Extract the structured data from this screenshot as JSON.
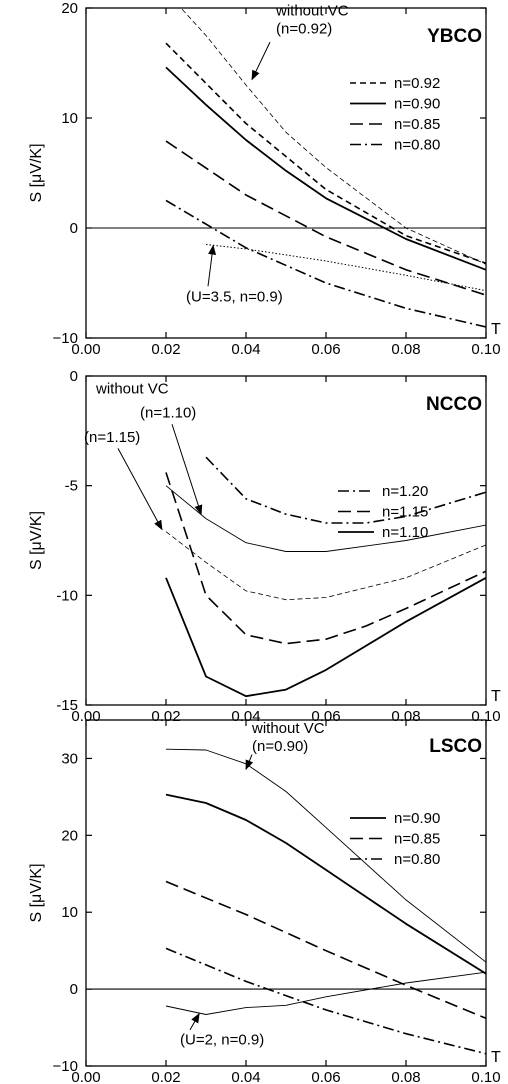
{
  "chart_data": [
    {
      "type": "line",
      "title": "YBCO",
      "xlabel": "T",
      "ylabel": "S [μV/K]",
      "xlim": [
        0.0,
        0.1
      ],
      "ylim": [
        -10,
        20
      ],
      "xticks": [
        "0.00",
        "0.02",
        "0.04",
        "0.06",
        "0.08",
        "0.10"
      ],
      "yticks": [
        "20",
        "10",
        "0",
        "−10"
      ],
      "zero_line": true,
      "legend_position": "right",
      "series": [
        {
          "name": "n=0.92",
          "style": "short-dash",
          "width": 1.6,
          "x": [
            0.02,
            0.04,
            0.06,
            0.08,
            0.1
          ],
          "y": [
            16.8,
            9.5,
            3.5,
            -0.7,
            -3.2
          ]
        },
        {
          "name": "n=0.90",
          "style": "solid",
          "width": 1.8,
          "x": [
            0.02,
            0.03,
            0.04,
            0.05,
            0.06,
            0.08,
            0.1
          ],
          "y": [
            14.6,
            11.2,
            8.0,
            5.2,
            2.7,
            -1.0,
            -3.8
          ]
        },
        {
          "name": "n=0.85",
          "style": "long-dash",
          "width": 1.6,
          "x": [
            0.02,
            0.04,
            0.06,
            0.08,
            0.1
          ],
          "y": [
            7.9,
            3.0,
            -0.8,
            -3.8,
            -6.1
          ]
        },
        {
          "name": "n=0.80",
          "style": "dash-dot",
          "width": 1.6,
          "x": [
            0.02,
            0.04,
            0.06,
            0.08,
            0.1
          ],
          "y": [
            2.5,
            -1.8,
            -5.0,
            -7.3,
            -9.0
          ]
        },
        {
          "name": "",
          "style": "thin-dash",
          "width": 0.8,
          "x": [
            0.02,
            0.03,
            0.04,
            0.05,
            0.06,
            0.08,
            0.1
          ],
          "y": [
            21.5,
            17.5,
            13.0,
            8.7,
            5.5,
            0.0,
            -3.3
          ]
        },
        {
          "name": "",
          "style": "dotted",
          "width": 1.0,
          "x": [
            0.03,
            0.04,
            0.06,
            0.08,
            0.1
          ],
          "y": [
            -1.5,
            -1.9,
            -3.0,
            -4.3,
            -5.7
          ]
        }
      ],
      "annotations": [
        {
          "lines": [
            "without VC",
            "(n=0.92)"
          ],
          "text_at": [
            0.0475,
            19.3
          ],
          "arrow_from": [
            0.046,
            16.9
          ],
          "arrow_to": [
            0.0415,
            13.5
          ]
        },
        {
          "lines": [
            "(U=3.5, n=0.9)"
          ],
          "text_at": [
            0.025,
            -6.7
          ],
          "arrow_from": [
            0.0305,
            -5.3
          ],
          "arrow_to": [
            0.0318,
            -1.6
          ]
        }
      ]
    },
    {
      "type": "line",
      "title": "NCCO",
      "xlabel": "T",
      "ylabel": "S [μV/K]",
      "xlim": [
        0.0,
        0.1
      ],
      "ylim": [
        -15,
        0
      ],
      "xticks": [
        "0.00",
        "0.02",
        "0.04",
        "0.06",
        "0.08",
        "0.10"
      ],
      "yticks": [
        "0",
        "-5",
        "-10",
        "-15"
      ],
      "zero_line": false,
      "legend_position": "right",
      "series": [
        {
          "name": "n=1.20",
          "style": "dash-dot",
          "width": 1.6,
          "x": [
            0.03,
            0.04,
            0.05,
            0.06,
            0.07,
            0.08,
            0.1
          ],
          "y": [
            -3.7,
            -5.6,
            -6.3,
            -6.7,
            -6.7,
            -6.4,
            -5.3
          ]
        },
        {
          "name": "n=1.15",
          "style": "long-dash",
          "width": 1.6,
          "x": [
            0.02,
            0.03,
            0.04,
            0.05,
            0.06,
            0.07,
            0.08,
            0.1
          ],
          "y": [
            -4.4,
            -10.0,
            -11.8,
            -12.2,
            -12.0,
            -11.4,
            -10.6,
            -8.9
          ]
        },
        {
          "name": "n=1.10",
          "style": "solid",
          "width": 1.8,
          "x": [
            0.02,
            0.03,
            0.04,
            0.05,
            0.06,
            0.08,
            0.1
          ],
          "y": [
            -9.2,
            -13.7,
            -14.6,
            -14.3,
            -13.4,
            -11.2,
            -9.2
          ]
        },
        {
          "name": "",
          "style": "solid",
          "width": 0.9,
          "x": [
            0.02,
            0.03,
            0.04,
            0.05,
            0.06,
            0.08,
            0.1
          ],
          "y": [
            -5.0,
            -6.5,
            -7.6,
            -8.0,
            -8.0,
            -7.5,
            -6.8
          ]
        },
        {
          "name": "",
          "style": "thin-dash",
          "width": 0.8,
          "x": [
            0.02,
            0.03,
            0.04,
            0.05,
            0.06,
            0.08,
            0.1
          ],
          "y": [
            -7.1,
            -8.5,
            -9.8,
            -10.2,
            -10.1,
            -9.2,
            -7.7
          ]
        }
      ],
      "annotations": [
        {
          "lines": [
            "without VC"
          ],
          "text_at": [
            0.0025,
            -0.8
          ],
          "arrow_from": null,
          "arrow_to": null
        },
        {
          "lines": [
            "(n=1.10)"
          ],
          "text_at": [
            0.0135,
            -1.9
          ],
          "arrow_from": [
            0.0215,
            -2.2
          ],
          "arrow_to": [
            0.0288,
            -6.3
          ]
        },
        {
          "lines": [
            "(n=1.15)"
          ],
          "text_at": [
            -0.0005,
            -3.0
          ],
          "arrow_from": [
            0.008,
            -3.3
          ],
          "arrow_to": [
            0.019,
            -7.0
          ]
        }
      ]
    },
    {
      "type": "line",
      "title": "LSCO",
      "xlabel": "T",
      "ylabel": "S [μV/K]",
      "xlim": [
        0.0,
        0.1
      ],
      "ylim": [
        -10,
        35
      ],
      "xticks": [
        "0.00",
        "0.02",
        "0.04",
        "0.06",
        "0.08",
        "0.10"
      ],
      "yticks": [
        "30",
        "20",
        "10",
        "0",
        "−10"
      ],
      "zero_line": true,
      "legend_position": "right",
      "series": [
        {
          "name": "n=0.90",
          "style": "solid",
          "width": 1.8,
          "x": [
            0.02,
            0.03,
            0.04,
            0.05,
            0.06,
            0.08,
            0.1
          ],
          "y": [
            25.3,
            24.2,
            22.0,
            19.0,
            15.5,
            8.5,
            2.0
          ]
        },
        {
          "name": "n=0.85",
          "style": "long-dash",
          "width": 1.6,
          "x": [
            0.02,
            0.04,
            0.06,
            0.08,
            0.1
          ],
          "y": [
            14.0,
            9.7,
            5.0,
            0.5,
            -3.8
          ]
        },
        {
          "name": "n=0.80",
          "style": "dash-dot",
          "width": 1.6,
          "x": [
            0.02,
            0.04,
            0.06,
            0.08,
            0.1
          ],
          "y": [
            5.3,
            1.0,
            -2.7,
            -5.8,
            -8.4
          ]
        },
        {
          "name": "",
          "style": "solid",
          "width": 0.9,
          "x": [
            0.02,
            0.03,
            0.04,
            0.05,
            0.06,
            0.08,
            0.1
          ],
          "y": [
            31.2,
            31.1,
            29.3,
            25.7,
            21.0,
            11.6,
            3.5
          ]
        },
        {
          "name": "",
          "style": "solid",
          "width": 0.9,
          "x": [
            0.02,
            0.03,
            0.04,
            0.05,
            0.06,
            0.08,
            0.1
          ],
          "y": [
            -2.2,
            -3.3,
            -2.4,
            -2.1,
            -1.0,
            0.8,
            2.2
          ]
        }
      ],
      "annotations": [
        {
          "lines": [
            "without VC",
            "(n=0.90)"
          ],
          "text_at": [
            0.0415,
            33.3
          ],
          "arrow_from": [
            0.0415,
            30.5
          ],
          "arrow_to": [
            0.04,
            28.6
          ]
        },
        {
          "lines": [
            "(U=2, n=0.9)"
          ],
          "text_at": [
            0.0235,
            -7.2
          ],
          "arrow_from": [
            0.026,
            -5.3
          ],
          "arrow_to": [
            0.0283,
            -3.2
          ]
        }
      ]
    }
  ]
}
